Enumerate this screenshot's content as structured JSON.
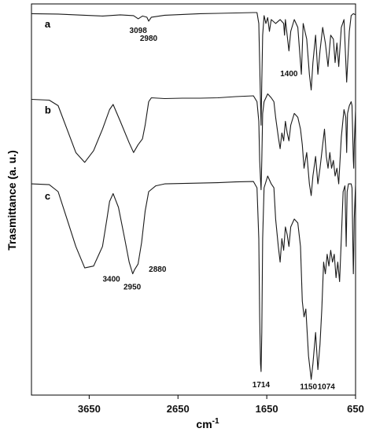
{
  "chart_data": {
    "type": "line",
    "title": "",
    "xlabel": "cm-1",
    "xlabel_sup": "-1",
    "ylabel": "Trasmittance (a. u.)",
    "xlim": [
      4300,
      650
    ],
    "x_reversed": true,
    "xticks": [
      3650,
      2650,
      1650,
      650
    ],
    "ylim": [
      0,
      100
    ],
    "grid": false,
    "legend": "none",
    "series": [
      {
        "name": "a",
        "label_pos": [
          4150,
          94
        ],
        "points": [
          [
            4300,
            97.5
          ],
          [
            4000,
            97.4
          ],
          [
            3700,
            97.1
          ],
          [
            3500,
            96.9
          ],
          [
            3300,
            97.2
          ],
          [
            3150,
            97.0
          ],
          [
            3098,
            96.2
          ],
          [
            3050,
            96.9
          ],
          [
            3000,
            96.6
          ],
          [
            2980,
            95.6
          ],
          [
            2950,
            96.6
          ],
          [
            2800,
            97.1
          ],
          [
            2600,
            97.3
          ],
          [
            2400,
            97.5
          ],
          [
            2200,
            97.6
          ],
          [
            2000,
            97.7
          ],
          [
            1800,
            97.8
          ],
          [
            1760,
            97.8
          ],
          [
            1740,
            95.0
          ],
          [
            1730,
            85.0
          ],
          [
            1720,
            75.0
          ],
          [
            1714,
            69.0
          ],
          [
            1706,
            80.0
          ],
          [
            1696,
            92.0
          ],
          [
            1680,
            97.0
          ],
          [
            1660,
            95.0
          ],
          [
            1640,
            96.5
          ],
          [
            1620,
            93.0
          ],
          [
            1600,
            96.0
          ],
          [
            1550,
            95.0
          ],
          [
            1500,
            96.0
          ],
          [
            1460,
            95.0
          ],
          [
            1450,
            92.0
          ],
          [
            1440,
            96.0
          ],
          [
            1400,
            88.0
          ],
          [
            1380,
            93.0
          ],
          [
            1340,
            96.0
          ],
          [
            1300,
            94.0
          ],
          [
            1260,
            82.0
          ],
          [
            1240,
            95.0
          ],
          [
            1200,
            91.0
          ],
          [
            1170,
            82.0
          ],
          [
            1150,
            78.0
          ],
          [
            1130,
            85.0
          ],
          [
            1100,
            92.0
          ],
          [
            1074,
            82.0
          ],
          [
            1050,
            88.0
          ],
          [
            1020,
            94.0
          ],
          [
            990,
            90.0
          ],
          [
            960,
            84.0
          ],
          [
            930,
            92.0
          ],
          [
            900,
            91.0
          ],
          [
            880,
            85.0
          ],
          [
            860,
            90.0
          ],
          [
            840,
            84.0
          ],
          [
            810,
            94.0
          ],
          [
            780,
            96.0
          ],
          [
            750,
            80.0
          ],
          [
            720,
            93.0
          ],
          [
            700,
            97.0
          ],
          [
            675,
            97.5
          ],
          [
            650,
            97.2
          ]
        ]
      },
      {
        "name": "b",
        "label_pos": [
          4150,
          72
        ],
        "points": [
          [
            4300,
            75.6
          ],
          [
            4100,
            75.4
          ],
          [
            4000,
            74.0
          ],
          [
            3900,
            68.0
          ],
          [
            3800,
            62.0
          ],
          [
            3700,
            59.5
          ],
          [
            3600,
            62.5
          ],
          [
            3500,
            68.0
          ],
          [
            3420,
            73.0
          ],
          [
            3380,
            74.3
          ],
          [
            3300,
            70.0
          ],
          [
            3200,
            64.5
          ],
          [
            3150,
            62.0
          ],
          [
            3100,
            64.0
          ],
          [
            3050,
            65.5
          ],
          [
            3020,
            69.0
          ],
          [
            2980,
            75.0
          ],
          [
            2950,
            76.0
          ],
          [
            2800,
            75.8
          ],
          [
            2600,
            75.9
          ],
          [
            2400,
            75.9
          ],
          [
            2200,
            76.0
          ],
          [
            2000,
            76.3
          ],
          [
            1800,
            76.5
          ],
          [
            1760,
            75.0
          ],
          [
            1740,
            70.0
          ],
          [
            1730,
            60.0
          ],
          [
            1720,
            55.0
          ],
          [
            1714,
            52.5
          ],
          [
            1706,
            60.0
          ],
          [
            1696,
            72.0
          ],
          [
            1680,
            75.0
          ],
          [
            1640,
            77.0
          ],
          [
            1600,
            76.0
          ],
          [
            1570,
            75.0
          ],
          [
            1550,
            71.0
          ],
          [
            1520,
            66.0
          ],
          [
            1500,
            63.0
          ],
          [
            1480,
            67.0
          ],
          [
            1460,
            65.0
          ],
          [
            1440,
            70.0
          ],
          [
            1420,
            67.0
          ],
          [
            1400,
            65.0
          ],
          [
            1380,
            69.0
          ],
          [
            1340,
            72.0
          ],
          [
            1300,
            71.0
          ],
          [
            1270,
            68.0
          ],
          [
            1250,
            64.0
          ],
          [
            1230,
            58.0
          ],
          [
            1200,
            62.0
          ],
          [
            1170,
            54.0
          ],
          [
            1150,
            51.0
          ],
          [
            1130,
            56.0
          ],
          [
            1100,
            61.0
          ],
          [
            1074,
            54.0
          ],
          [
            1050,
            58.0
          ],
          [
            1020,
            64.0
          ],
          [
            1000,
            68.0
          ],
          [
            980,
            61.0
          ],
          [
            960,
            58.0
          ],
          [
            940,
            62.0
          ],
          [
            920,
            58.0
          ],
          [
            900,
            60.0
          ],
          [
            880,
            56.0
          ],
          [
            860,
            58.0
          ],
          [
            840,
            54.0
          ],
          [
            810,
            66.0
          ],
          [
            780,
            73.0
          ],
          [
            760,
            71.0
          ],
          [
            750,
            62.0
          ],
          [
            740,
            72.0
          ],
          [
            720,
            74.0
          ],
          [
            700,
            75.0
          ],
          [
            690,
            74.0
          ],
          [
            675,
            60.0
          ],
          [
            670,
            58.0
          ],
          [
            665,
            64.0
          ],
          [
            650,
            73.0
          ]
        ]
      },
      {
        "name": "c",
        "label_pos": [
          4150,
          50
        ],
        "points": [
          [
            4300,
            54.0
          ],
          [
            4100,
            53.8
          ],
          [
            4000,
            52.0
          ],
          [
            3900,
            45.0
          ],
          [
            3800,
            38.0
          ],
          [
            3700,
            32.5
          ],
          [
            3600,
            33.0
          ],
          [
            3500,
            38.0
          ],
          [
            3450,
            45.0
          ],
          [
            3420,
            49.5
          ],
          [
            3380,
            51.5
          ],
          [
            3320,
            48.0
          ],
          [
            3250,
            40.0
          ],
          [
            3200,
            34.0
          ],
          [
            3160,
            31.0
          ],
          [
            3140,
            32.0
          ],
          [
            3100,
            33.5
          ],
          [
            3060,
            39.0
          ],
          [
            3020,
            47.0
          ],
          [
            2980,
            52.0
          ],
          [
            2900,
            53.5
          ],
          [
            2800,
            54.0
          ],
          [
            2600,
            54.1
          ],
          [
            2400,
            54.2
          ],
          [
            2200,
            54.3
          ],
          [
            2000,
            54.5
          ],
          [
            1800,
            54.6
          ],
          [
            1760,
            53.0
          ],
          [
            1740,
            40.0
          ],
          [
            1730,
            20.0
          ],
          [
            1720,
            8.0
          ],
          [
            1714,
            6.0
          ],
          [
            1706,
            16.0
          ],
          [
            1696,
            40.0
          ],
          [
            1680,
            53.0
          ],
          [
            1640,
            56.0
          ],
          [
            1600,
            54.0
          ],
          [
            1570,
            53.0
          ],
          [
            1550,
            45.0
          ],
          [
            1520,
            38.0
          ],
          [
            1500,
            34.0
          ],
          [
            1480,
            40.0
          ],
          [
            1460,
            37.0
          ],
          [
            1440,
            43.0
          ],
          [
            1420,
            41.0
          ],
          [
            1400,
            38.0
          ],
          [
            1380,
            43.0
          ],
          [
            1340,
            45.0
          ],
          [
            1300,
            44.0
          ],
          [
            1270,
            38.0
          ],
          [
            1250,
            24.0
          ],
          [
            1230,
            20.0
          ],
          [
            1210,
            22.0
          ],
          [
            1180,
            10.0
          ],
          [
            1150,
            4.0
          ],
          [
            1130,
            8.0
          ],
          [
            1100,
            16.0
          ],
          [
            1074,
            6.5
          ],
          [
            1050,
            13.0
          ],
          [
            1030,
            22.0
          ],
          [
            1010,
            34.0
          ],
          [
            990,
            31.0
          ],
          [
            970,
            36.0
          ],
          [
            950,
            33.0
          ],
          [
            930,
            37.0
          ],
          [
            910,
            34.0
          ],
          [
            890,
            36.0
          ],
          [
            870,
            30.0
          ],
          [
            850,
            34.0
          ],
          [
            830,
            29.0
          ],
          [
            810,
            40.0
          ],
          [
            790,
            52.0
          ],
          [
            770,
            53.5
          ],
          [
            755,
            38.0
          ],
          [
            745,
            52.0
          ],
          [
            730,
            54.0
          ],
          [
            700,
            54.0
          ],
          [
            690,
            53.0
          ],
          [
            680,
            38.0
          ],
          [
            675,
            31.0
          ],
          [
            670,
            36.0
          ],
          [
            665,
            45.0
          ],
          [
            650,
            54.0
          ]
        ]
      }
    ],
    "annotations": [
      {
        "text": "3098",
        "x": 3098,
        "y": 92.6,
        "anchor": "middle"
      },
      {
        "text": "2980",
        "x": 2980,
        "y": 90.6,
        "anchor": "middle"
      },
      {
        "text": "1400",
        "x": 1400,
        "y": 81.5,
        "anchor": "middle"
      },
      {
        "text": "3400",
        "x": 3400,
        "y": 29.0,
        "anchor": "middle"
      },
      {
        "text": "2950",
        "x": 3165,
        "y": 27.0,
        "anchor": "middle"
      },
      {
        "text": "2880",
        "x": 2880,
        "y": 31.5,
        "anchor": "middle"
      },
      {
        "text": "1714",
        "x": 1714,
        "y": 2.0,
        "anchor": "middle"
      },
      {
        "text": "1150",
        "x": 1180,
        "y": 1.5,
        "anchor": "middle"
      },
      {
        "text": "1074",
        "x": 980,
        "y": 1.5,
        "anchor": "middle"
      }
    ]
  }
}
